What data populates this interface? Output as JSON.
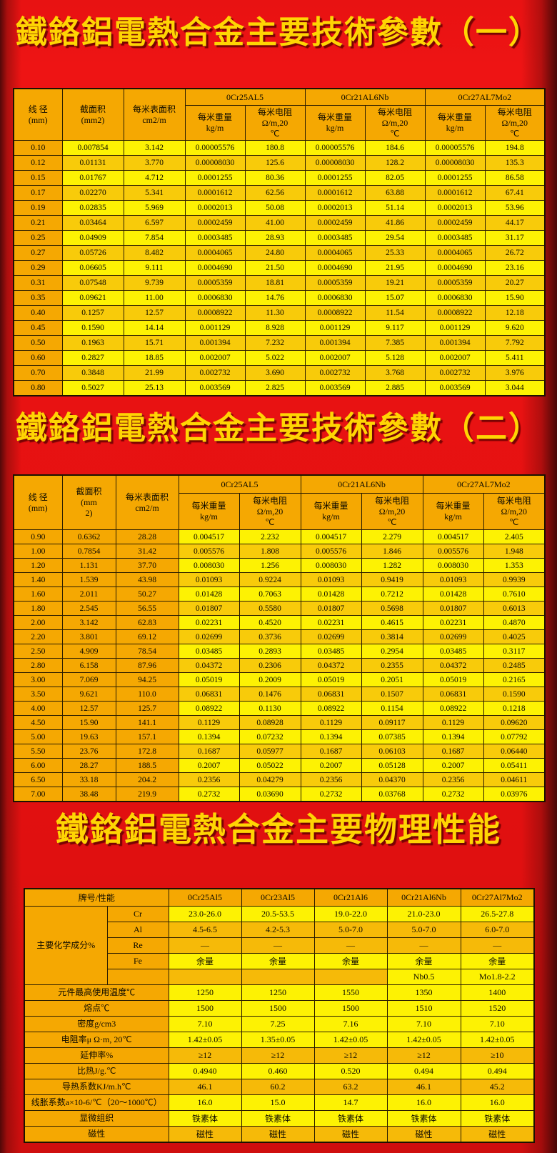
{
  "page": {
    "title1": "鐵鉻鋁電熱合金主要技術參數（一）",
    "title2": "鐵鉻鋁電熱合金主要技術參數（二）",
    "title3": "鐵鉻鋁電熱合金主要物理性能"
  },
  "colors": {
    "background_red": "#e61111",
    "edge_maroon": "#4a0808",
    "cell_orange": "#f5a802",
    "cell_yellow": "#fdf203",
    "cell_gold": "#f8cb0a",
    "title_gold": "#ffd503"
  },
  "table1": {
    "headers": {
      "diameter": "线 径\n(mm)",
      "cross_section": "截面积\n(mm2)",
      "surface_area": "每米表面积\ncm2/m",
      "weight": "每米重量\nkg/m",
      "resistance": "每米电阻\nΩ/m,20\n℃"
    },
    "alloys": [
      "0Cr25AL5",
      "0Cr21AL6Nb",
      "0Cr27AL7Mo2"
    ],
    "rows": [
      [
        "0.10",
        "0.007854",
        "3.142",
        "0.00005576",
        "180.8",
        "0.00005576",
        "184.6",
        "0.00005576",
        "194.8"
      ],
      [
        "0.12",
        "0.01131",
        "3.770",
        "0.00008030",
        "125.6",
        "0.00008030",
        "128.2",
        "0.00008030",
        "135.3"
      ],
      [
        "0.15",
        "0.01767",
        "4.712",
        "0.0001255",
        "80.36",
        "0.0001255",
        "82.05",
        "0.0001255",
        "86.58"
      ],
      [
        "0.17",
        "0.02270",
        "5.341",
        "0.0001612",
        "62.56",
        "0.0001612",
        "63.88",
        "0.0001612",
        "67.41"
      ],
      [
        "0.19",
        "0.02835",
        "5.969",
        "0.0002013",
        "50.08",
        "0.0002013",
        "51.14",
        "0.0002013",
        "53.96"
      ],
      [
        "0.21",
        "0.03464",
        "6.597",
        "0.0002459",
        "41.00",
        "0.0002459",
        "41.86",
        "0.0002459",
        "44.17"
      ],
      [
        "0.25",
        "0.04909",
        "7.854",
        "0.0003485",
        "28.93",
        "0.0003485",
        "29.54",
        "0.0003485",
        "31.17"
      ],
      [
        "0.27",
        "0.05726",
        "8.482",
        "0.0004065",
        "24.80",
        "0.0004065",
        "25.33",
        "0.0004065",
        "26.72"
      ],
      [
        "0.29",
        "0.06605",
        "9.111",
        "0.0004690",
        "21.50",
        "0.0004690",
        "21.95",
        "0.0004690",
        "23.16"
      ],
      [
        "0.31",
        "0.07548",
        "9.739",
        "0.0005359",
        "18.81",
        "0.0005359",
        "19.21",
        "0.0005359",
        "20.27"
      ],
      [
        "0.35",
        "0.09621",
        "11.00",
        "0.0006830",
        "14.76",
        "0.0006830",
        "15.07",
        "0.0006830",
        "15.90"
      ],
      [
        "0.40",
        "0.1257",
        "12.57",
        "0.0008922",
        "11.30",
        "0.0008922",
        "11.54",
        "0.0008922",
        "12.18"
      ],
      [
        "0.45",
        "0.1590",
        "14.14",
        "0.001129",
        "8.928",
        "0.001129",
        "9.117",
        "0.001129",
        "9.620"
      ],
      [
        "0.50",
        "0.1963",
        "15.71",
        "0.001394",
        "7.232",
        "0.001394",
        "7.385",
        "0.001394",
        "7.792"
      ],
      [
        "0.60",
        "0.2827",
        "18.85",
        "0.002007",
        "5.022",
        "0.002007",
        "5.128",
        "0.002007",
        "5.411"
      ],
      [
        "0.70",
        "0.3848",
        "21.99",
        "0.002732",
        "3.690",
        "0.002732",
        "3.768",
        "0.002732",
        "3.976"
      ],
      [
        "0.80",
        "0.5027",
        "25.13",
        "0.003569",
        "2.825",
        "0.003569",
        "2.885",
        "0.003569",
        "3.044"
      ]
    ]
  },
  "table2": {
    "headers": {
      "diameter": "线 径\n(mm)",
      "cross_section": "截面积\n(mm\n2)",
      "surface_area": "每米表面积\ncm2/m",
      "weight": "每米重量\nkg/m",
      "resistance": "每米电阻\nΩ/m,20\n℃"
    },
    "alloys": [
      "0Cr25AL5",
      "0Cr21AL6Nb",
      "0Cr27AL7Mo2"
    ],
    "rows": [
      [
        "0.90",
        "0.6362",
        "28.28",
        "0.004517",
        "2.232",
        "0.004517",
        "2.279",
        "0.004517",
        "2.405"
      ],
      [
        "1.00",
        "0.7854",
        "31.42",
        "0.005576",
        "1.808",
        "0.005576",
        "1.846",
        "0.005576",
        "1.948"
      ],
      [
        "1.20",
        "1.131",
        "37.70",
        "0.008030",
        "1.256",
        "0.008030",
        "1.282",
        "0.008030",
        "1.353"
      ],
      [
        "1.40",
        "1.539",
        "43.98",
        "0.01093",
        "0.9224",
        "0.01093",
        "0.9419",
        "0.01093",
        "0.9939"
      ],
      [
        "1.60",
        "2.011",
        "50.27",
        "0.01428",
        "0.7063",
        "0.01428",
        "0.7212",
        "0.01428",
        "0.7610"
      ],
      [
        "1.80",
        "2.545",
        "56.55",
        "0.01807",
        "0.5580",
        "0.01807",
        "0.5698",
        "0.01807",
        "0.6013"
      ],
      [
        "2.00",
        "3.142",
        "62.83",
        "0.02231",
        "0.4520",
        "0.02231",
        "0.4615",
        "0.02231",
        "0.4870"
      ],
      [
        "2.20",
        "3.801",
        "69.12",
        "0.02699",
        "0.3736",
        "0.02699",
        "0.3814",
        "0.02699",
        "0.4025"
      ],
      [
        "2.50",
        "4.909",
        "78.54",
        "0.03485",
        "0.2893",
        "0.03485",
        "0.2954",
        "0.03485",
        "0.3117"
      ],
      [
        "2.80",
        "6.158",
        "87.96",
        "0.04372",
        "0.2306",
        "0.04372",
        "0.2355",
        "0.04372",
        "0.2485"
      ],
      [
        "3.00",
        "7.069",
        "94.25",
        "0.05019",
        "0.2009",
        "0.05019",
        "0.2051",
        "0.05019",
        "0.2165"
      ],
      [
        "3.50",
        "9.621",
        "110.0",
        "0.06831",
        "0.1476",
        "0.06831",
        "0.1507",
        "0.06831",
        "0.1590"
      ],
      [
        "4.00",
        "12.57",
        "125.7",
        "0.08922",
        "0.1130",
        "0.08922",
        "0.1154",
        "0.08922",
        "0.1218"
      ],
      [
        "4.50",
        "15.90",
        "141.1",
        "0.1129",
        "0.08928",
        "0.1129",
        "0.09117",
        "0.1129",
        "0.09620"
      ],
      [
        "5.00",
        "19.63",
        "157.1",
        "0.1394",
        "0.07232",
        "0.1394",
        "0.07385",
        "0.1394",
        "0.07792"
      ],
      [
        "5.50",
        "23.76",
        "172.8",
        "0.1687",
        "0.05977",
        "0.1687",
        "0.06103",
        "0.1687",
        "0.06440"
      ],
      [
        "6.00",
        "28.27",
        "188.5",
        "0.2007",
        "0.05022",
        "0.2007",
        "0.05128",
        "0.2007",
        "0.05411"
      ],
      [
        "6.50",
        "33.18",
        "204.2",
        "0.2356",
        "0.04279",
        "0.2356",
        "0.04370",
        "0.2356",
        "0.04611"
      ],
      [
        "7.00",
        "38.48",
        "219.9",
        "0.2732",
        "0.03690",
        "0.2732",
        "0.03768",
        "0.2732",
        "0.03976"
      ]
    ]
  },
  "table3": {
    "header_label": "牌号/性能",
    "alloys": [
      "0Cr25Al5",
      "0Cr23Al5",
      "0Cr21Al6",
      "0Cr21Al6Nb",
      "0Cr27Al7Mo2"
    ],
    "chem_group_label": "主要化学成分%",
    "chem_rows": [
      {
        "el": "Cr",
        "values": [
          "23.0-26.0",
          "20.5-53.5",
          "19.0-22.0",
          "21.0-23.0",
          "26.5-27.8"
        ]
      },
      {
        "el": "Al",
        "values": [
          "4.5-6.5",
          "4.2-5.3",
          "5.0-7.0",
          "5.0-7.0",
          "6.0-7.0"
        ]
      },
      {
        "el": "Re",
        "values": [
          "—",
          "—",
          "—",
          "—",
          "—"
        ]
      },
      {
        "el": "Fe",
        "values": [
          "余量",
          "余量",
          "余量",
          "余量",
          "余量"
        ]
      },
      {
        "el": "",
        "values": [
          "",
          "",
          "",
          "Nb0.5",
          "Mo1.8-2.2"
        ]
      }
    ],
    "prop_rows": [
      {
        "label": "元件最高使用温度℃",
        "values": [
          "1250",
          "1250",
          "1550",
          "1350",
          "1400"
        ]
      },
      {
        "label": "熔点℃",
        "values": [
          "1500",
          "1500",
          "1500",
          "1510",
          "1520"
        ]
      },
      {
        "label": "密度g/cm3",
        "values": [
          "7.10",
          "7.25",
          "7.16",
          "7.10",
          "7.10"
        ]
      },
      {
        "label": "电阻率μ Ω·m, 20℃",
        "values": [
          "1.42±0.05",
          "1.35±0.05",
          "1.42±0.05",
          "1.42±0.05",
          "1.42±0.05"
        ]
      },
      {
        "label": "延伸率%",
        "values": [
          "≥12",
          "≥12",
          "≥12",
          "≥12",
          "≥10"
        ]
      },
      {
        "label": "比热J/g.℃",
        "values": [
          "0.4940",
          "0.460",
          "0.520",
          "0.494",
          "0.494"
        ]
      },
      {
        "label": "导热系数KJ/m.h℃",
        "values": [
          "46.1",
          "60.2",
          "63.2",
          "46.1",
          "45.2"
        ]
      },
      {
        "label": "线胀系数a×10-6/℃（20～1000℃）",
        "values": [
          "16.0",
          "15.0",
          "14.7",
          "16.0",
          "16.0"
        ]
      },
      {
        "label": "显微组织",
        "values": [
          "铁素体",
          "铁素体",
          "铁素体",
          "铁素体",
          "铁素体"
        ]
      },
      {
        "label": "磁性",
        "values": [
          "磁性",
          "磁性",
          "磁性",
          "磁性",
          "磁性"
        ]
      }
    ]
  }
}
